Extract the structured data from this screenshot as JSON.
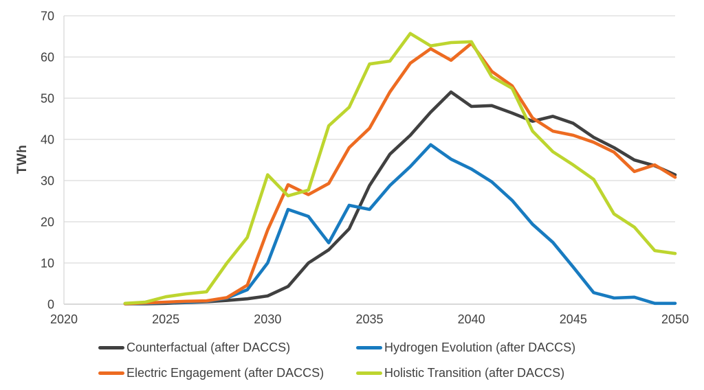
{
  "chart_data": {
    "type": "line",
    "title": "",
    "xlabel": "",
    "ylabel": "TWh",
    "xlim": [
      2020,
      2050
    ],
    "ylim": [
      0,
      70
    ],
    "x_ticks": [
      2020,
      2025,
      2030,
      2035,
      2040,
      2045,
      2050
    ],
    "y_ticks": [
      0,
      10,
      20,
      30,
      40,
      50,
      60,
      70
    ],
    "grid": "horizontal",
    "legend_position": "bottom",
    "x": [
      2023,
      2024,
      2025,
      2026,
      2027,
      2028,
      2029,
      2030,
      2031,
      2032,
      2033,
      2034,
      2035,
      2036,
      2037,
      2038,
      2039,
      2040,
      2041,
      2042,
      2043,
      2044,
      2045,
      2046,
      2047,
      2048,
      2049,
      2050
    ],
    "series": [
      {
        "name": "Counterfactual (after DACCS)",
        "color": "#404040",
        "values": [
          0.1,
          0.1,
          0.2,
          0.4,
          0.6,
          0.9,
          1.3,
          2.0,
          4.3,
          10.0,
          13.2,
          18.3,
          28.8,
          36.4,
          41.0,
          46.6,
          51.5,
          48.0,
          48.2,
          46.4,
          44.4,
          45.6,
          43.9,
          40.5,
          38.0,
          35.0,
          33.6,
          31.4
        ]
      },
      {
        "name": "Hydrogen Evolution (after DACCS)",
        "color": "#187bc0",
        "values": [
          0.1,
          0.2,
          0.4,
          0.5,
          0.7,
          1.5,
          3.5,
          10.0,
          23.0,
          21.3,
          14.9,
          24.0,
          23.0,
          28.8,
          33.4,
          38.7,
          35.2,
          32.8,
          29.7,
          25.2,
          19.4,
          15.0,
          9.0,
          2.8,
          1.5,
          1.7,
          0.2,
          0.2
        ]
      },
      {
        "name": "Electric Engagement (after DACCS)",
        "color": "#ed6b21",
        "values": [
          0.1,
          0.3,
          0.5,
          0.7,
          0.8,
          1.6,
          4.6,
          18.0,
          29.0,
          26.6,
          29.3,
          38.0,
          42.7,
          51.5,
          58.5,
          62.0,
          59.2,
          63.3,
          56.5,
          53.0,
          45.2,
          42.0,
          41.0,
          39.3,
          36.9,
          32.2,
          33.8,
          30.8
        ]
      },
      {
        "name": "Holistic Transition (after DACCS)",
        "color": "#bdd52f",
        "values": [
          0.2,
          0.5,
          1.8,
          2.5,
          3.0,
          10.0,
          16.2,
          31.4,
          26.3,
          27.7,
          43.3,
          47.8,
          58.3,
          59.0,
          65.7,
          62.7,
          63.5,
          63.7,
          55.2,
          52.4,
          42.0,
          37.0,
          33.8,
          30.3,
          21.9,
          18.7,
          13.0,
          12.3
        ]
      }
    ]
  },
  "colors": {
    "text": "#404040",
    "gridline": "#d9d9d9",
    "axis_line": "#c0c0c0",
    "background": "#ffffff"
  }
}
